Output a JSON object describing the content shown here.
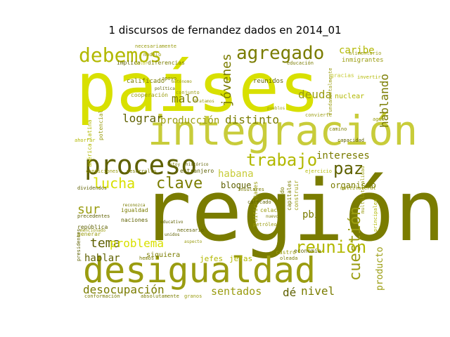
{
  "chart_data": {
    "type": "wordcloud",
    "title": "1 discursos de fernandez dados en 2014_01",
    "palette": [
      "#d8e000",
      "#7a7c00",
      "#b2b800",
      "#9a9c10",
      "#c8cc3a",
      "#5e6000"
    ],
    "words": [
      {
        "text": "región",
        "weight": 100,
        "color": "#7a7c00"
      },
      {
        "text": "países",
        "weight": 95,
        "color": "#d8e000"
      },
      {
        "text": "integración",
        "weight": 72,
        "color": "#c8cc3a"
      },
      {
        "text": "desigualdad",
        "weight": 62,
        "color": "#9a9c10"
      },
      {
        "text": "proceso",
        "weight": 48,
        "color": "#5e6000"
      },
      {
        "text": "debemos",
        "weight": 36,
        "color": "#b2b800"
      },
      {
        "text": "agregado",
        "weight": 34,
        "color": "#7a7c00"
      },
      {
        "text": "reunión",
        "weight": 32,
        "color": "#b2b800"
      },
      {
        "text": "cuestión",
        "weight": 31,
        "color": "#9a9c10"
      },
      {
        "text": "trabajo",
        "weight": 30,
        "color": "#b2b800"
      },
      {
        "text": "clave",
        "weight": 28,
        "color": "#7a7c00"
      },
      {
        "text": "paz",
        "weight": 28,
        "color": "#5e6000"
      },
      {
        "text": "lucha",
        "weight": 25,
        "color": "#d8e000"
      },
      {
        "text": "jóvenes",
        "weight": 24,
        "color": "#7a7c00"
      },
      {
        "text": "hablando",
        "weight": 22,
        "color": "#7a7c00"
      },
      {
        "text": "distinto",
        "weight": 20,
        "color": "#7a7c00"
      },
      {
        "text": "tema",
        "weight": 20,
        "color": "#5e6000"
      },
      {
        "text": "problema",
        "weight": 19,
        "color": "#d8e000"
      },
      {
        "text": "deuda",
        "weight": 18,
        "color": "#9a9c10"
      },
      {
        "text": "sur",
        "weight": 18,
        "color": "#9a9c10"
      },
      {
        "text": "lograr",
        "weight": 17,
        "color": "#5e6000"
      },
      {
        "text": "malo",
        "weight": 17,
        "color": "#7a7c00"
      },
      {
        "text": "caribe",
        "weight": 17,
        "color": "#b2b800"
      },
      {
        "text": "habana",
        "weight": 16,
        "color": "#c8cc3a"
      },
      {
        "text": "producción",
        "weight": 16,
        "color": "#9a9c10"
      },
      {
        "text": "sentados",
        "weight": 16,
        "color": "#9a9c10"
      },
      {
        "text": "dé",
        "weight": 16,
        "color": "#5e6000"
      },
      {
        "text": "nivel",
        "weight": 16,
        "color": "#7a7c00"
      },
      {
        "text": "desocupación",
        "weight": 16,
        "color": "#7a7c00"
      },
      {
        "text": "producto",
        "weight": 15,
        "color": "#9a9c10"
      },
      {
        "text": "intereses",
        "weight": 14,
        "color": "#7a7c00"
      },
      {
        "text": "hablar",
        "weight": 14,
        "color": "#5e6000"
      },
      {
        "text": "organismo",
        "weight": 13,
        "color": "#7a7c00"
      },
      {
        "text": "pbi",
        "weight": 13,
        "color": "#7a7c00"
      },
      {
        "text": "bloque",
        "weight": 12,
        "color": "#5e6000"
      },
      {
        "text": "jefes",
        "weight": 11,
        "color": "#b2b800"
      },
      {
        "text": "jefas",
        "weight": 11,
        "color": "#b2b800"
      },
      {
        "text": "siquiera",
        "weight": 10,
        "color": "#7a7c00"
      },
      {
        "text": "nuclear",
        "weight": 10,
        "color": "#b2b800"
      },
      {
        "text": "calificado",
        "weight": 9,
        "color": "#7a7c00"
      },
      {
        "text": "cooperación",
        "weight": 9,
        "color": "#9a9c10"
      },
      {
        "text": "reunidos",
        "weight": 9,
        "color": "#5e6000"
      },
      {
        "text": "inmigrantes",
        "weight": 9,
        "color": "#9a9c10"
      },
      {
        "text": "implica",
        "weight": 8,
        "color": "#5e6000"
      },
      {
        "text": "necesariamente",
        "weight": 8,
        "color": "#9a9c10"
      },
      {
        "text": "diferencias",
        "weight": 8,
        "color": "#7a7c00"
      },
      {
        "text": "fundamentalmente",
        "weight": 8,
        "color": "#9a9c10"
      },
      {
        "text": "gracias",
        "weight": 8,
        "color": "#c8cc3a"
      },
      {
        "text": "américa latina",
        "weight": 8,
        "color": "#b2b800"
      },
      {
        "text": "potencial",
        "weight": 8,
        "color": "#9a9c10"
      },
      {
        "text": "construir",
        "weight": 8,
        "color": "#9a9c10"
      },
      {
        "text": "mercado",
        "weight": 8,
        "color": "#7a7c00"
      },
      {
        "text": "capitales",
        "weight": 8,
        "color": "#7a7c00"
      },
      {
        "text": "dificultades",
        "weight": 8,
        "color": "#9a9c10"
      },
      {
        "text": "colocado",
        "weight": 8,
        "color": "#5e6000"
      },
      {
        "text": "celac",
        "weight": 8,
        "color": "#9a9c10"
      },
      {
        "text": "petróleo",
        "weight": 8,
        "color": "#9a9c10"
      },
      {
        "text": "multilateralidad",
        "weight": 8,
        "color": "#9a9c10"
      },
      {
        "text": "economía",
        "weight": 8,
        "color": "#5e6000"
      },
      {
        "text": "castro",
        "weight": 8,
        "color": "#9a9c10"
      },
      {
        "text": "igualdad",
        "weight": 8,
        "color": "#7a7c00"
      },
      {
        "text": "naciones",
        "weight": 8,
        "color": "#5e6000"
      },
      {
        "text": "república",
        "weight": 8,
        "color": "#5e6000"
      },
      {
        "text": "generar",
        "weight": 8,
        "color": "#9a9c10"
      },
      {
        "text": "extranjero",
        "weight": 8,
        "color": "#5e6000"
      },
      {
        "text": "desarrollo",
        "weight": 7,
        "color": "#7a7c00"
      },
      {
        "text": "condiciones",
        "weight": 7,
        "color": "#9a9c10"
      },
      {
        "text": "precedentes",
        "weight": 7,
        "color": "#5e6000"
      },
      {
        "text": "dividendos",
        "weight": 7,
        "color": "#5e6000"
      },
      {
        "text": "insulares",
        "weight": 7,
        "color": "#7a7c00"
      },
      {
        "text": "ejercicio",
        "weight": 7,
        "color": "#b2b800"
      },
      {
        "text": "multilateral",
        "weight": 7,
        "color": "#9a9c10"
      },
      {
        "text": "agua",
        "weight": 7,
        "color": "#9a9c10"
      },
      {
        "text": "capacidad",
        "weight": 7,
        "color": "#5e6000"
      },
      {
        "text": "camino",
        "weight": 7,
        "color": "#7a7c00"
      },
      {
        "text": "principales",
        "weight": 7,
        "color": "#b2b800"
      },
      {
        "text": "convierte",
        "weight": 7,
        "color": "#9a9c10"
      },
      {
        "text": "educación",
        "weight": 7,
        "color": "#7a7c00"
      },
      {
        "text": "alimentario",
        "weight": 7,
        "color": "#9a9c10"
      },
      {
        "text": "invertir",
        "weight": 7,
        "color": "#b2b800"
      },
      {
        "text": "modelo",
        "weight": 7,
        "color": "#9a9c10"
      },
      {
        "text": "absolutamente",
        "weight": 7,
        "color": "#7a7c00"
      },
      {
        "text": "granos",
        "weight": 7,
        "color": "#9a9c10"
      },
      {
        "text": "conformación",
        "weight": 7,
        "color": "#7a7c00"
      },
      {
        "text": "presidentes",
        "weight": 7,
        "color": "#5e6000"
      },
      {
        "text": "hemos",
        "weight": 7,
        "color": "#7a7c00"
      },
      {
        "text": "aspecto",
        "weight": 6,
        "color": "#9a9c10"
      },
      {
        "text": "apoyo",
        "weight": 6,
        "color": "#7a7c00"
      },
      {
        "text": "autónomo",
        "weight": 6,
        "color": "#9a9c10"
      },
      {
        "text": "histórico",
        "weight": 6,
        "color": "#5e6000"
      },
      {
        "text": "estoy",
        "weight": 6,
        "color": "#7a7c00"
      },
      {
        "text": "pueblos",
        "weight": 6,
        "color": "#9a9c10"
      },
      {
        "text": "necesario",
        "weight": 6,
        "color": "#5e6000"
      },
      {
        "text": "mencionado",
        "weight": 6,
        "color": "#9a9c10"
      },
      {
        "text": "reconozca",
        "weight": 6,
        "color": "#7a7c00"
      },
      {
        "text": "conjunto",
        "weight": 6,
        "color": "#9a9c10"
      },
      {
        "text": "política",
        "weight": 6,
        "color": "#5e6000"
      },
      {
        "text": "tratamos",
        "weight": 6,
        "color": "#9a9c10"
      },
      {
        "text": "oleada",
        "weight": 6,
        "color": "#7a7c00"
      },
      {
        "text": "ahorrar",
        "weight": 6,
        "color": "#b2b800"
      },
      {
        "text": "educativo",
        "weight": 6,
        "color": "#5e6000"
      },
      {
        "text": "unidos",
        "weight": 6,
        "color": "#5e6000"
      },
      {
        "text": "dolor",
        "weight": 6,
        "color": "#b2b800"
      },
      {
        "text": "nuevo",
        "weight": 6,
        "color": "#7a7c00"
      }
    ]
  }
}
